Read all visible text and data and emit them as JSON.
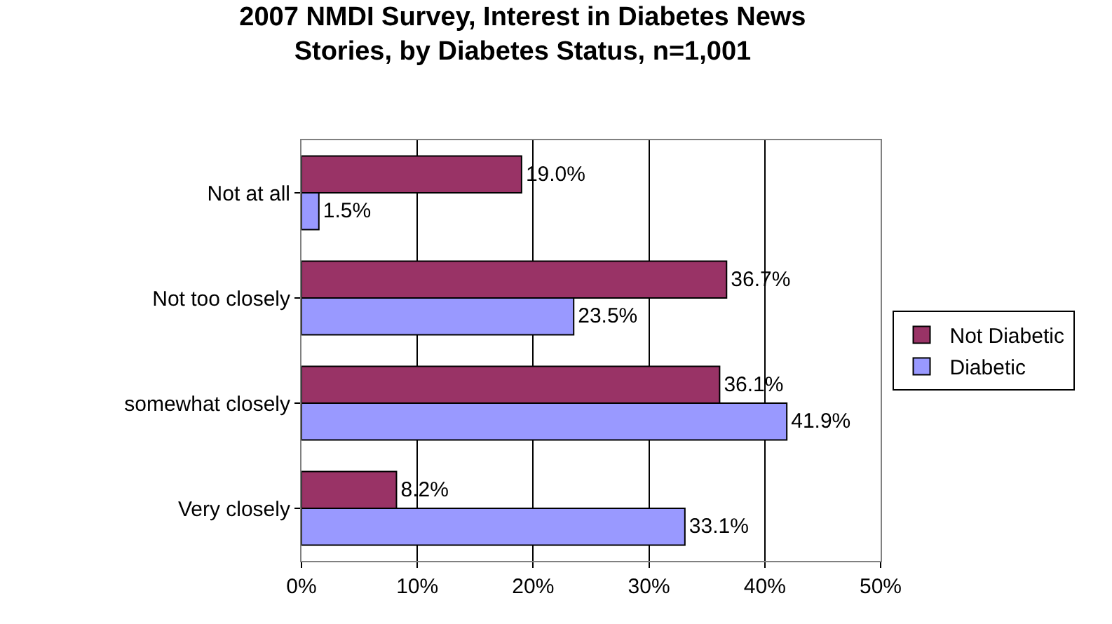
{
  "chart_data": {
    "type": "bar",
    "orientation": "horizontal",
    "title": "2007 NMDI Survey, Interest in Diabetes News Stories, by Diabetes Status, n=1,001",
    "categories": [
      "Not at all",
      "Not too closely",
      "somewhat closely",
      "Very closely"
    ],
    "series": [
      {
        "name": "Not Diabetic",
        "color": "#993366",
        "values": [
          19.0,
          36.7,
          36.1,
          8.2
        ],
        "value_labels": [
          "19.0%",
          "36.7%",
          "36.1%",
          "8.2%"
        ]
      },
      {
        "name": "Diabetic",
        "color": "#9999ff",
        "values": [
          1.5,
          23.5,
          41.9,
          33.1
        ],
        "value_labels": [
          "1.5%",
          "23.5%",
          "41.9%",
          "33.1%"
        ]
      }
    ],
    "xlim": [
      0,
      50
    ],
    "xticks": [
      {
        "value": 0,
        "label": "0%"
      },
      {
        "value": 10,
        "label": "10%"
      },
      {
        "value": 20,
        "label": "20%"
      },
      {
        "value": 30,
        "label": "30%"
      },
      {
        "value": 40,
        "label": "40%"
      },
      {
        "value": 50,
        "label": "50%"
      }
    ],
    "grid": "x",
    "legend": "right"
  }
}
